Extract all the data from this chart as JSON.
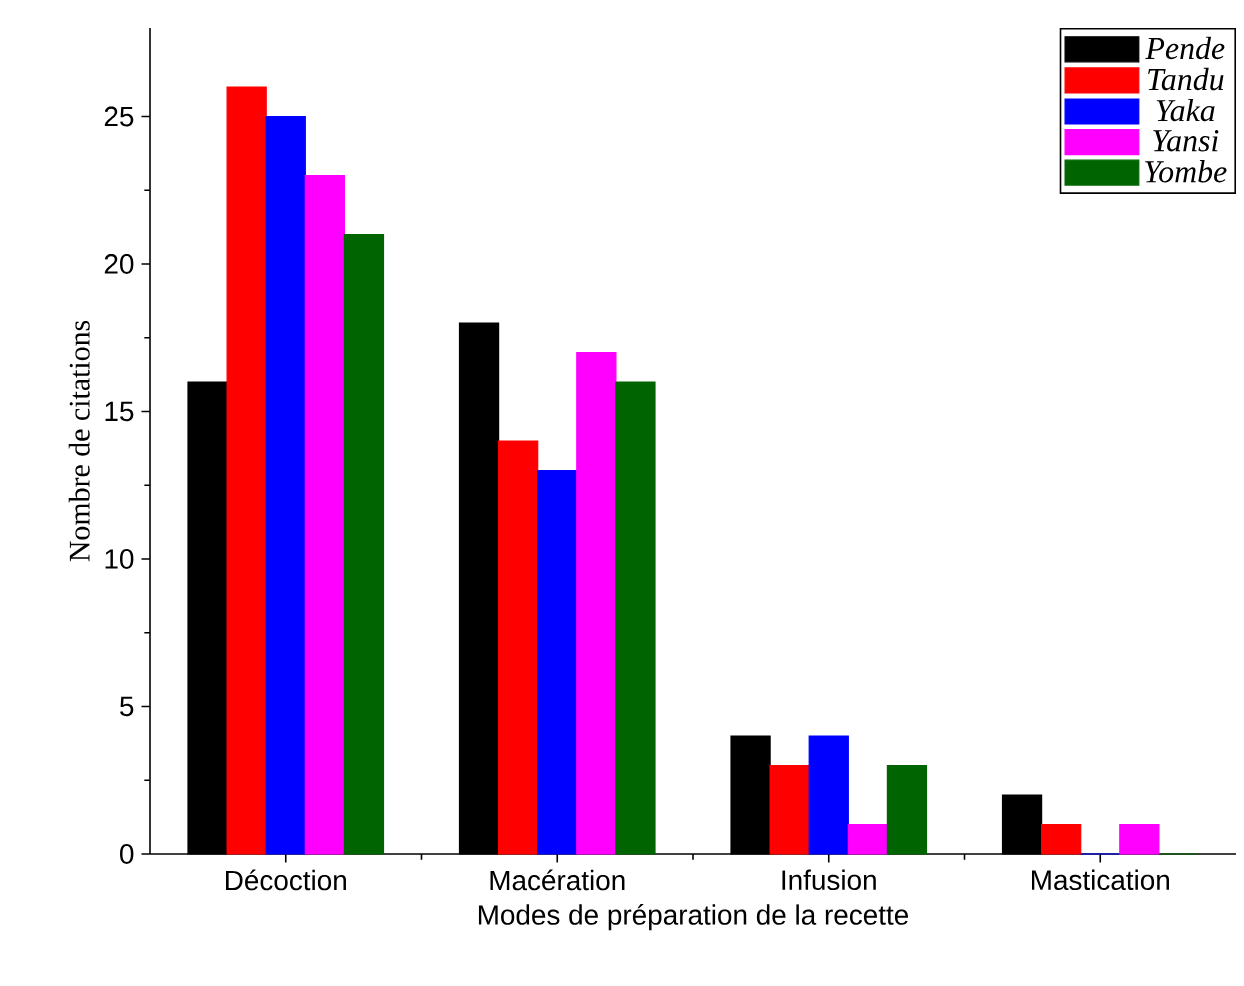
{
  "chart_data": {
    "type": "bar",
    "xlabel": "Modes de préparation de la recette",
    "ylabel": "Nombre de citations",
    "categories": [
      "Décoction",
      "Macération",
      "Infusion",
      "Mastication"
    ],
    "series": [
      {
        "name": "Pende",
        "color": "#000000",
        "values": [
          16,
          18,
          4,
          2
        ]
      },
      {
        "name": "Tandu",
        "color": "#ff0000",
        "values": [
          26,
          14,
          3,
          1
        ]
      },
      {
        "name": "Yaka",
        "color": "#0000ff",
        "values": [
          25,
          13,
          4,
          0
        ]
      },
      {
        "name": "Yansi",
        "color": "#ff00ff",
        "values": [
          23,
          17,
          1,
          1
        ]
      },
      {
        "name": "Yombe",
        "color": "#006400",
        "values": [
          21,
          16,
          3,
          0
        ]
      }
    ],
    "ylim": [
      0,
      28
    ],
    "yticks": [
      0,
      5,
      10,
      15,
      20,
      25
    ],
    "grid": false,
    "legend": "top right"
  }
}
